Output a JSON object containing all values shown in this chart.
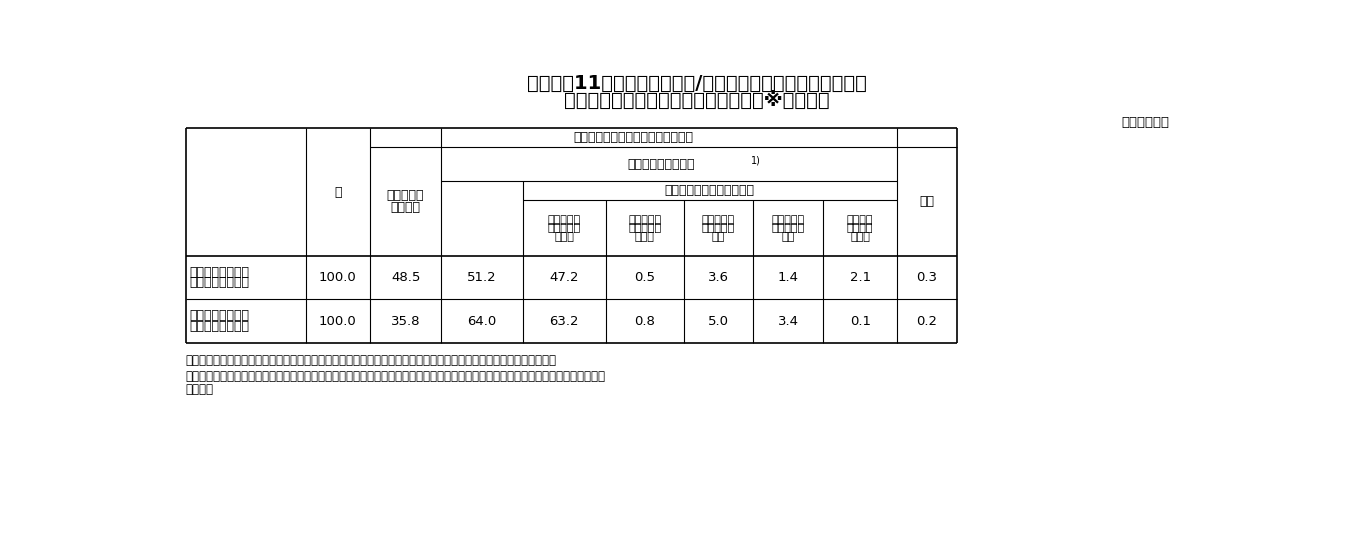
{
  "title_line1": "表　１－11－１　　（専門型/企画型別）適用労働者に対する",
  "title_line2": "特別手当の有無・頻度別事業場割合　※複数回答",
  "unit_label": "（単位：％）",
  "header_level1": "適用労働者に対する特別手当の有無",
  "header_col0": "計",
  "header_col1_line1": "特別手当制",
  "header_col1_line2": "度はない",
  "header_level2": "特別手当制度がある",
  "header_level2_sup": "1)",
  "header_freq": "支払いの頻度（複数回答）",
  "header_col3_l1": "１か月ごと",
  "header_col3_l2": "に支払われ",
  "header_col3_l3": "ている",
  "header_col4_l1": "四半期ごと",
  "header_col4_l2": "に支払われ",
  "header_col4_l3": "ている",
  "header_col5_l1": "半年ごとに",
  "header_col5_l2": "支払われて",
  "header_col5_l3": "いる",
  "header_col6_l1": "１年ごとに",
  "header_col6_l2": "支払われて",
  "header_col6_l3": "いる",
  "header_col7_l1": "不定期に",
  "header_col7_l2": "支払われ",
  "header_col7_l3": "ている",
  "header_col8": "不明",
  "row1_label_l1": "専門型裁量労働制",
  "row1_label_l2": "適用労働者がいる",
  "row1_values": [
    "100.0",
    "48.5",
    "51.2",
    "47.2",
    "0.5",
    "3.6",
    "1.4",
    "2.1",
    "0.3"
  ],
  "row2_label_l1": "企画型裁量労働制",
  "row2_label_l2": "適用労働者がいる",
  "row2_values": [
    "100.0",
    "35.8",
    "64.0",
    "63.2",
    "0.8",
    "5.0",
    "3.4",
    "0.1",
    "0.2"
  ],
  "note1": "注：特別手当には、給与・賞与等と別に支払われるものだけでなく、給与・賞与等に上乗せで支払われるものを含む。",
  "note2_l1": "１）「特別手当制度がある」事業場の割合については、計から「特別手当制度はない」と「不明」を引いて算出した割合を掲載してい",
  "note2_l2": "　　る。",
  "bg_color": "#ffffff",
  "text_color": "#000000",
  "line_color": "#000000"
}
